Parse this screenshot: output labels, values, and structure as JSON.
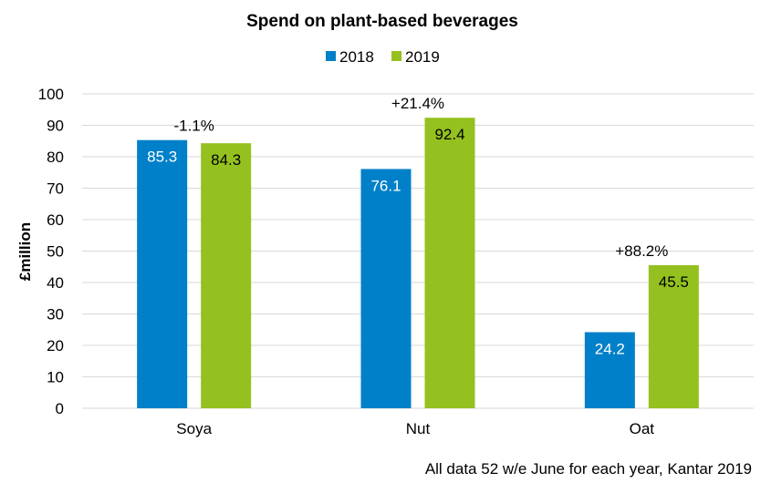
{
  "chart_data": {
    "type": "bar",
    "title": "Spend on plant-based beverages",
    "xlabel": "",
    "ylabel": "£million",
    "ylim": [
      0,
      100
    ],
    "yticks": [
      0,
      10,
      20,
      30,
      40,
      50,
      60,
      70,
      80,
      90,
      100
    ],
    "grid": true,
    "legend_position": "top-center",
    "categories": [
      "Soya",
      "Nut",
      "Oat"
    ],
    "series": [
      {
        "name": "2018",
        "color": "#0080c8",
        "label_color": "#ffffff",
        "values": [
          85.3,
          76.1,
          24.2
        ],
        "labels": [
          "85.3",
          "76.1",
          "24.2"
        ]
      },
      {
        "name": "2019",
        "color": "#94c11f",
        "label_color": "#000000",
        "values": [
          84.3,
          92.4,
          45.5
        ],
        "labels": [
          "84.3",
          "92.4",
          "45.5"
        ]
      }
    ],
    "annotations": [
      "-1.1%",
      "+21.4%",
      "+88.2%"
    ],
    "footnote": "All data 52 w/e June for each year, Kantar 2019"
  }
}
